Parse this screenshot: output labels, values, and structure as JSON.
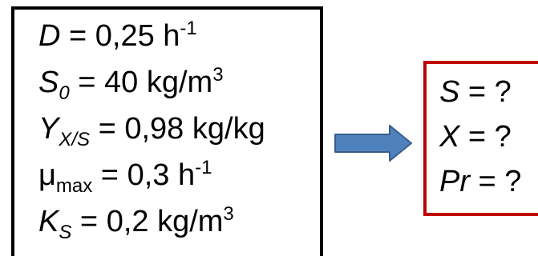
{
  "given": {
    "dilution_rate": {
      "symbol": "D",
      "equals": " = ",
      "value": "0,25 h",
      "exponent": "-1"
    },
    "substrate_feed": {
      "symbol": "S",
      "subscript": "0",
      "equals": " = ",
      "value": "40 kg/m",
      "exponent": "3"
    },
    "yield": {
      "symbol": "Y",
      "subscript": "X/S",
      "equals": " = ",
      "value": "0,98 kg/kg"
    },
    "mu_max": {
      "symbol": "μ",
      "subscript": "max",
      "equals": " = ",
      "value": "0,3 h",
      "exponent": "-1"
    },
    "saturation_constant": {
      "symbol": "K",
      "subscript": "S",
      "equals": " = ",
      "value": "0,2 kg/m",
      "exponent": "3"
    }
  },
  "unknowns": [
    {
      "symbol": "S",
      "equals": " = ?"
    },
    {
      "symbol": "X",
      "equals": " = ?"
    },
    {
      "symbol": "Pr",
      "equals": " = ?"
    }
  ],
  "colors": {
    "given_border": "#000000",
    "result_border": "#c00000",
    "arrow_fill": "#4f81bd",
    "arrow_stroke": "#385d8a"
  },
  "icons": {
    "arrow": "right-arrow-icon"
  }
}
